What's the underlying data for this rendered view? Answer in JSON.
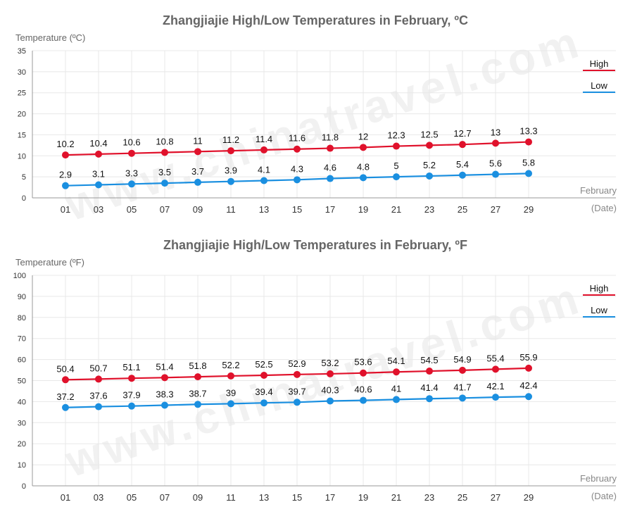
{
  "watermark": "www.chinatravel.com",
  "colors": {
    "high": "#e0112b",
    "low": "#1a8fe0"
  },
  "chart_data": [
    {
      "type": "line",
      "title": "Zhangjiajie High/Low Temperatures in February, ºC",
      "ylabel": "Temperature (ºC)",
      "xlabel": "February",
      "xlabel_sub": "(Date)",
      "categories": [
        "01",
        "03",
        "05",
        "07",
        "09",
        "11",
        "13",
        "15",
        "17",
        "19",
        "21",
        "23",
        "25",
        "27",
        "29"
      ],
      "ylim": [
        0,
        35
      ],
      "yticks": [
        0,
        5,
        10,
        15,
        20,
        25,
        30,
        35
      ],
      "grid": true,
      "legend": "top-right",
      "series": [
        {
          "name": "High",
          "color": "#e0112b",
          "values": [
            10.2,
            10.4,
            10.6,
            10.8,
            11,
            11.2,
            11.4,
            11.6,
            11.8,
            12,
            12.3,
            12.5,
            12.7,
            13,
            13.3
          ]
        },
        {
          "name": "Low",
          "color": "#1a8fe0",
          "values": [
            2.9,
            3.1,
            3.3,
            3.5,
            3.7,
            3.9,
            4.1,
            4.3,
            4.6,
            4.8,
            5,
            5.2,
            5.4,
            5.6,
            5.8
          ]
        }
      ]
    },
    {
      "type": "line",
      "title": "Zhangjiajie High/Low Temperatures in February, ºF",
      "ylabel": "Temperature (ºF)",
      "xlabel": "February",
      "xlabel_sub": "(Date)",
      "categories": [
        "01",
        "03",
        "05",
        "07",
        "09",
        "11",
        "13",
        "15",
        "17",
        "19",
        "21",
        "23",
        "25",
        "27",
        "29"
      ],
      "ylim": [
        0,
        100
      ],
      "yticks": [
        0,
        10,
        20,
        30,
        40,
        50,
        60,
        70,
        80,
        90,
        100
      ],
      "grid": true,
      "legend": "top-right",
      "series": [
        {
          "name": "High",
          "color": "#e0112b",
          "values": [
            50.4,
            50.7,
            51.1,
            51.4,
            51.8,
            52.2,
            52.5,
            52.9,
            53.2,
            53.6,
            54.1,
            54.5,
            54.9,
            55.4,
            55.9
          ]
        },
        {
          "name": "Low",
          "color": "#1a8fe0",
          "values": [
            37.2,
            37.6,
            37.9,
            38.3,
            38.7,
            39,
            39.4,
            39.7,
            40.3,
            40.6,
            41,
            41.4,
            41.7,
            42.1,
            42.4
          ]
        }
      ]
    }
  ]
}
